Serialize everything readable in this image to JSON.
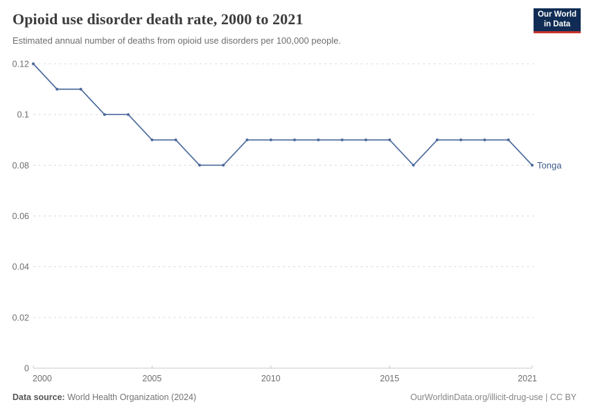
{
  "header": {
    "title": "Opioid use disorder death rate, 2000 to 2021",
    "subtitle": "Estimated annual number of deaths from opioid use disorders per 100,000 people.",
    "logo": {
      "line1": "Our World",
      "line2": "in Data",
      "bg_color": "#102C54",
      "accent_color": "#C9342E"
    }
  },
  "chart_data": {
    "type": "line",
    "title": "Opioid use disorder death rate, 2000 to 2021",
    "x": [
      2000,
      2001,
      2002,
      2003,
      2004,
      2005,
      2006,
      2007,
      2008,
      2009,
      2010,
      2011,
      2012,
      2013,
      2014,
      2015,
      2016,
      2017,
      2018,
      2019,
      2020,
      2021
    ],
    "series": [
      {
        "name": "Tonga",
        "color": "#4C6A9C",
        "label_color": "#3D5A8C",
        "values": [
          0.12,
          0.11,
          0.11,
          0.1,
          0.1,
          0.09,
          0.09,
          0.08,
          0.08,
          0.09,
          0.09,
          0.09,
          0.09,
          0.09,
          0.09,
          0.09,
          0.08,
          0.09,
          0.09,
          0.09,
          0.09,
          0.08
        ]
      }
    ],
    "xlabel": "",
    "ylabel": "",
    "ylim": [
      0,
      0.12
    ],
    "yticks": [
      0,
      0.02,
      0.04,
      0.06,
      0.08,
      0.1,
      0.12
    ],
    "ytick_labels": [
      "0",
      "0.02",
      "0.04",
      "0.06",
      "0.08",
      "0.1",
      "0.12"
    ],
    "xticks": [
      2000,
      2005,
      2010,
      2015,
      2021
    ],
    "grid": "horizontal-dashed",
    "legend_position": "end-of-line"
  },
  "footer": {
    "datasource_label": "Data source:",
    "datasource_value": "World Health Organization (2024)",
    "credit": "OurWorldinData.org/illicit-drug-use | CC BY"
  }
}
